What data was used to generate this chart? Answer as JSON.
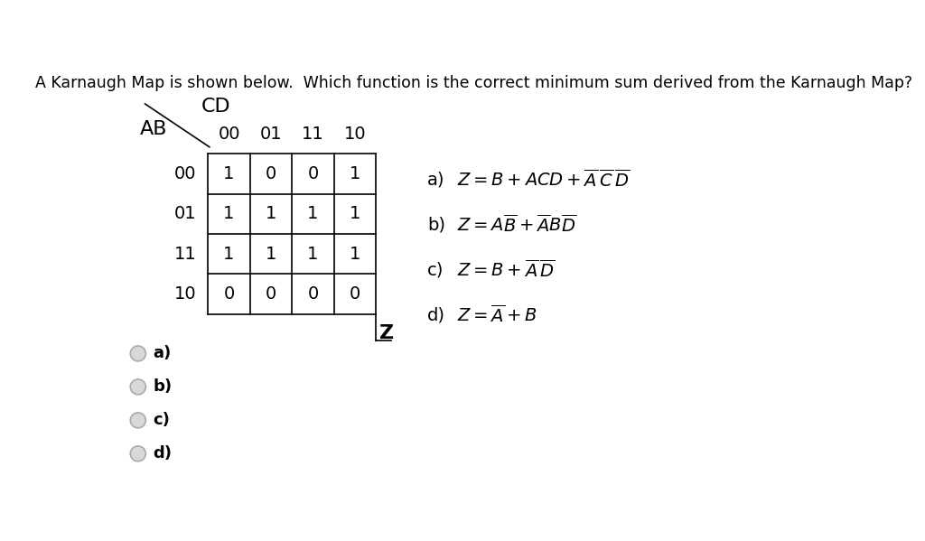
{
  "title": "A Karnaugh Map is shown below.  Which function is the correct minimum sum derived from the Karnaugh Map?",
  "title_fontsize": 12.5,
  "background_color": "#ffffff",
  "table": {
    "col_headers": [
      "00",
      "01",
      "11",
      "10"
    ],
    "row_headers": [
      "00",
      "01",
      "11",
      "10"
    ],
    "col_label": "CD",
    "row_label": "AB",
    "values": [
      [
        1,
        0,
        0,
        1
      ],
      [
        1,
        1,
        1,
        1
      ],
      [
        1,
        1,
        1,
        1
      ],
      [
        0,
        0,
        0,
        0
      ]
    ],
    "z_label": "Z"
  },
  "formulas": {
    "a)": "$Z = B + ACD + \\overline{A}\\,\\overline{C}\\,\\overline{D}$",
    "b)": "$Z = A\\overline{B} + \\overline{A}B\\overline{D}$",
    "c)": "$Z = B + \\overline{A}\\,\\overline{D}$",
    "d)": "$Z = \\overline{A} + B$"
  },
  "option_letters": [
    "a)",
    "b)",
    "c)",
    "d)"
  ],
  "radio_labels": [
    "a)",
    "b)",
    "c)",
    "d)"
  ],
  "text_color": "#000000",
  "grid_color": "#000000",
  "radio_color": "#cccccc",
  "radio_edge_color": "#aaaaaa"
}
